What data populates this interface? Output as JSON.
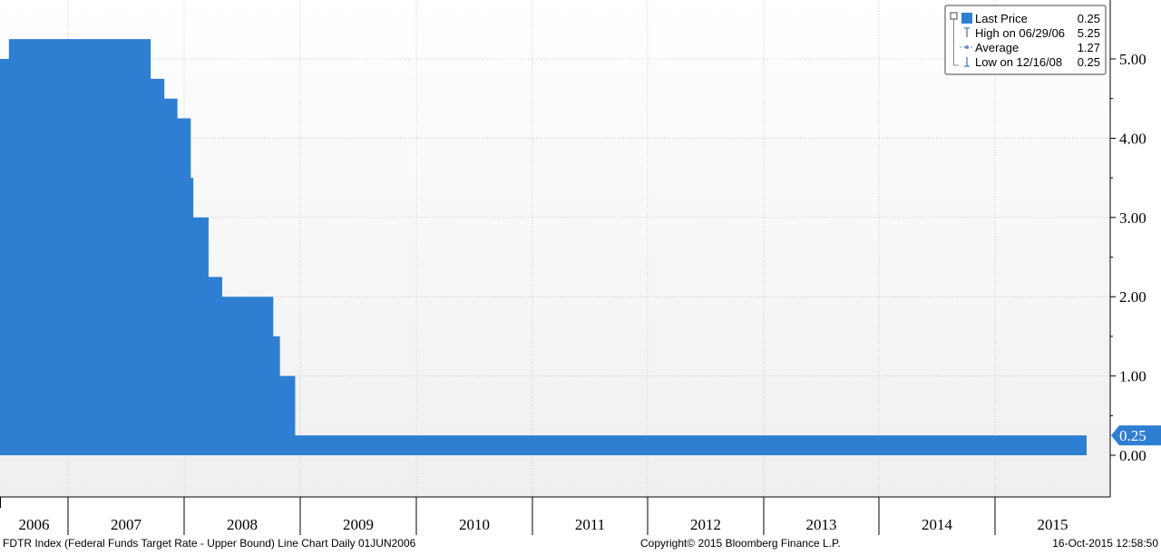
{
  "chart_data": {
    "type": "area",
    "series": [
      {
        "name": "Last Price",
        "color": "#2e7fd2",
        "points": [
          [
            "2006-06-01",
            5.0
          ],
          [
            "2006-06-29",
            5.25
          ],
          [
            "2007-09-18",
            4.75
          ],
          [
            "2007-10-31",
            4.5
          ],
          [
            "2007-12-11",
            4.25
          ],
          [
            "2008-01-22",
            3.5
          ],
          [
            "2008-01-30",
            3.0
          ],
          [
            "2008-03-18",
            2.25
          ],
          [
            "2008-04-30",
            2.0
          ],
          [
            "2008-10-08",
            1.5
          ],
          [
            "2008-10-29",
            1.0
          ],
          [
            "2008-12-16",
            0.25
          ],
          [
            "2015-10-16",
            0.25
          ]
        ]
      }
    ],
    "x_range": [
      "2006-06-01",
      "2015-10-16"
    ],
    "ylim": [
      -0.5,
      5.7
    ],
    "yticks": [
      {
        "value": 5.0,
        "label": "5.00"
      },
      {
        "value": 4.0,
        "label": "4.00"
      },
      {
        "value": 3.0,
        "label": "3.00"
      },
      {
        "value": 2.0,
        "label": "2.00"
      },
      {
        "value": 1.0,
        "label": "1.00"
      },
      {
        "value": 0.0,
        "label": "0.00"
      }
    ],
    "xticks": [
      "2006",
      "2007",
      "2008",
      "2009",
      "2010",
      "2011",
      "2012",
      "2013",
      "2014",
      "2015"
    ],
    "grid": true,
    "y_axis_side": "right",
    "last_value": {
      "value": 0.25,
      "label": "0.25",
      "color": "#2e7fd2"
    },
    "legend": {
      "placement": "top-right",
      "entries": [
        {
          "label": "Last Price",
          "value": "0.25",
          "marker": "square"
        },
        {
          "label": "High on 06/29/06",
          "value": "5.25",
          "marker": "high"
        },
        {
          "label": "Average",
          "value": "1.27",
          "marker": "average"
        },
        {
          "label": "Low on 12/16/08",
          "value": "0.25",
          "marker": "low"
        }
      ]
    }
  },
  "footer": {
    "description": "FDTR Index (Federal Funds Target Rate - Upper Bound) Line Chart  Daily 01JUN2006",
    "copyright": "Copyright© 2015 Bloomberg Finance L.P.",
    "timestamp": "16-Oct-2015 12:58:50"
  }
}
